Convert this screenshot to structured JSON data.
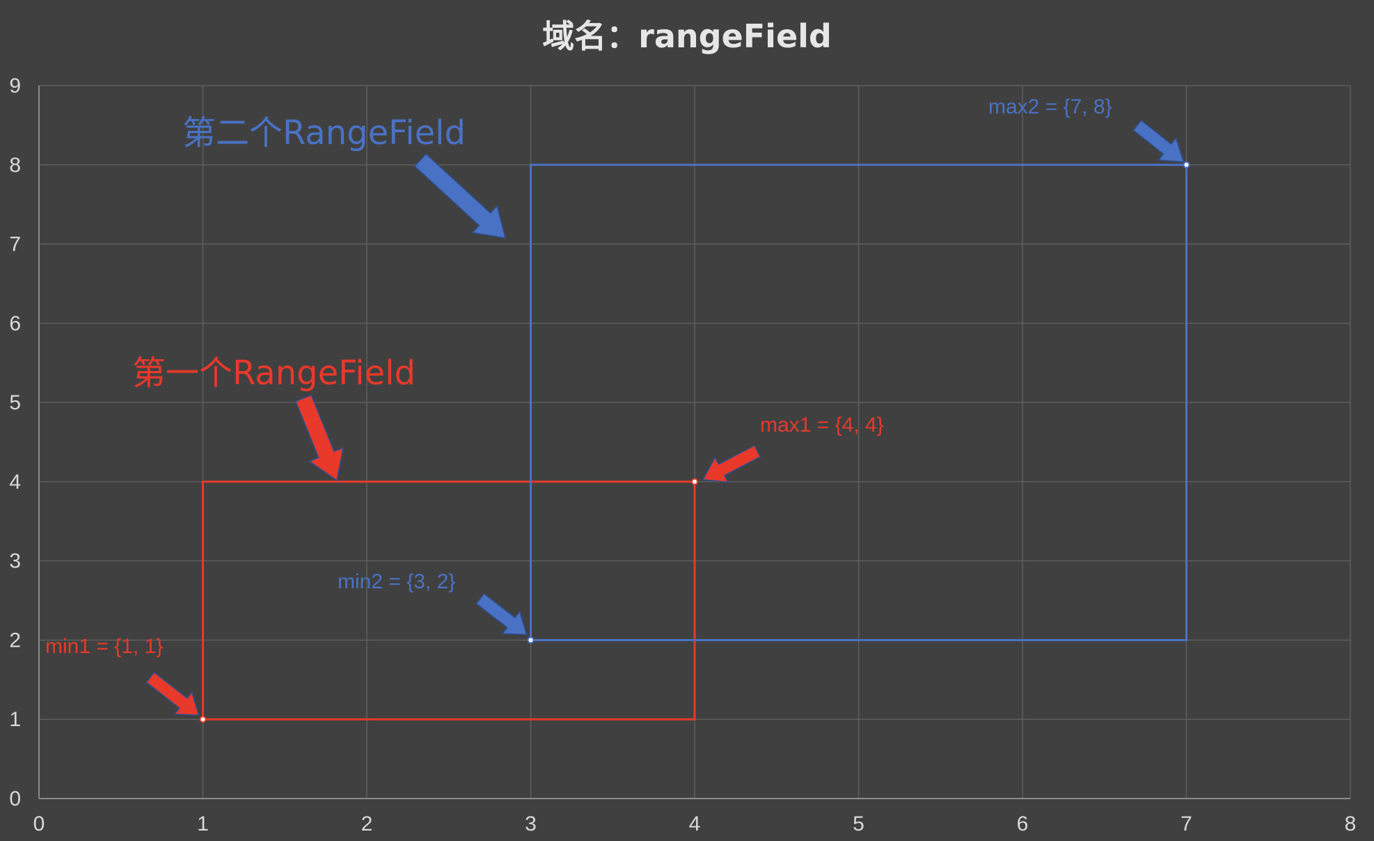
{
  "chart_data": {
    "type": "scatter",
    "title": "域名：rangeField",
    "xlim": [
      0,
      8
    ],
    "ylim": [
      0,
      9
    ],
    "x_ticks": [
      "0",
      "1",
      "2",
      "3",
      "4",
      "5",
      "6",
      "7",
      "8"
    ],
    "y_ticks": [
      "0",
      "1",
      "2",
      "3",
      "4",
      "5",
      "6",
      "7",
      "8",
      "9"
    ],
    "grid": true,
    "legend": "none",
    "series": [
      {
        "color": "#e8392b",
        "rectangle": {
          "min": [
            1,
            1
          ],
          "max": [
            4,
            4
          ]
        },
        "points": [
          {
            "x": 1,
            "y": 1,
            "label": "min1 = {1, 1}"
          },
          {
            "x": 4,
            "y": 4,
            "label": "max1 = {4, 4}"
          }
        ]
      },
      {
        "color": "#4a72c4",
        "rectangle": {
          "min": [
            3,
            2
          ],
          "max": [
            7,
            8
          ]
        },
        "points": [
          {
            "x": 3,
            "y": 2,
            "label": "min2 = {3, 2}"
          },
          {
            "x": 7,
            "y": 8,
            "label": "max2 = {7, 8}"
          }
        ]
      }
    ],
    "annotations": [
      {
        "text": "第一个RangeField",
        "color": "#e8392b"
      },
      {
        "text": "第二个RangeField",
        "color": "#4a72c4"
      }
    ]
  }
}
